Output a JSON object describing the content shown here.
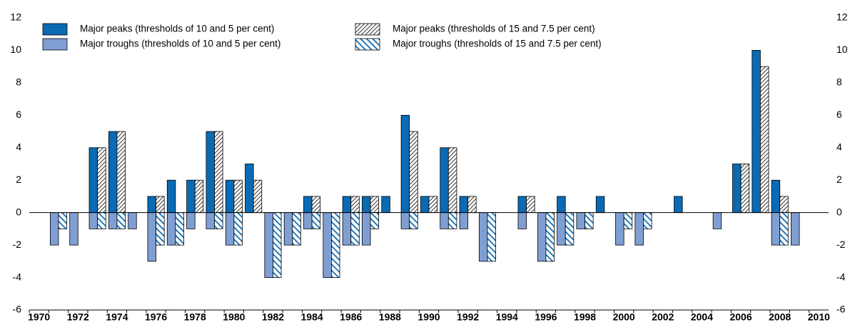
{
  "chart_data": {
    "type": "bar",
    "categories": [
      "1970",
      null,
      "1972",
      null,
      "1974",
      null,
      "1976",
      null,
      "1978",
      null,
      "1980",
      null,
      "1982",
      null,
      "1984",
      null,
      "1986",
      null,
      "1988",
      null,
      "1990",
      null,
      "1992",
      null,
      "1994",
      null,
      "1996",
      null,
      "1998",
      null,
      "2000",
      null,
      "2002",
      null,
      "2004",
      null,
      "2006",
      null,
      "2008",
      null,
      "2010"
    ],
    "series": [
      {
        "name": "Major peaks (thresholds of 10 and 5 per cent)",
        "color": "#0a6ab4",
        "hatch": "none",
        "values": [
          null,
          null,
          null,
          4,
          5,
          null,
          1,
          2,
          2,
          5,
          2,
          3,
          null,
          null,
          1,
          null,
          1,
          1,
          1,
          6,
          1,
          4,
          1,
          null,
          null,
          1,
          null,
          1,
          null,
          1,
          null,
          null,
          null,
          1,
          null,
          null,
          3,
          10,
          2,
          null,
          null
        ]
      },
      {
        "name": "Major peaks (thresholds of 15 and 7.5 per cent)",
        "color": "#333333",
        "hatch": "forward",
        "values": [
          null,
          null,
          null,
          4,
          5,
          null,
          1,
          null,
          2,
          5,
          2,
          2,
          null,
          null,
          1,
          null,
          1,
          1,
          null,
          5,
          1,
          4,
          1,
          null,
          null,
          1,
          null,
          null,
          null,
          null,
          null,
          null,
          null,
          null,
          null,
          null,
          3,
          9,
          1,
          null,
          null
        ]
      },
      {
        "name": "Major troughs (thresholds of 10 and 5 per cent)",
        "color": "#7f9fd3",
        "hatch": "none",
        "values": [
          null,
          -2,
          -2,
          -1,
          -1,
          -1,
          -3,
          -2,
          -1,
          -1,
          -2,
          null,
          -4,
          -2,
          -1,
          -4,
          -2,
          -2,
          null,
          -1,
          null,
          -1,
          -1,
          -3,
          null,
          -1,
          -3,
          -2,
          -1,
          null,
          -2,
          -2,
          null,
          null,
          null,
          -1,
          null,
          null,
          -2,
          -2,
          null
        ]
      },
      {
        "name": "Major troughs (thresholds of 15 and 7.5 per cent)",
        "color": "#0a6ab4",
        "hatch": "backward",
        "values": [
          null,
          -1,
          null,
          -1,
          -1,
          null,
          -2,
          -2,
          null,
          -1,
          -2,
          null,
          -4,
          -2,
          -1,
          -4,
          -2,
          -1,
          null,
          -1,
          null,
          -1,
          null,
          -3,
          null,
          null,
          -3,
          -2,
          -1,
          null,
          -1,
          -1,
          null,
          null,
          null,
          null,
          null,
          null,
          -2,
          null,
          null
        ]
      }
    ],
    "ylim": [
      -6,
      12
    ],
    "yticks": [
      -6,
      -4,
      -2,
      0,
      2,
      4,
      6,
      8,
      10,
      12
    ],
    "y2lim": [
      -6,
      12
    ],
    "y2ticks": [
      -6,
      -4,
      -2,
      0,
      2,
      4,
      6,
      8,
      10,
      12
    ],
    "grid": false
  }
}
